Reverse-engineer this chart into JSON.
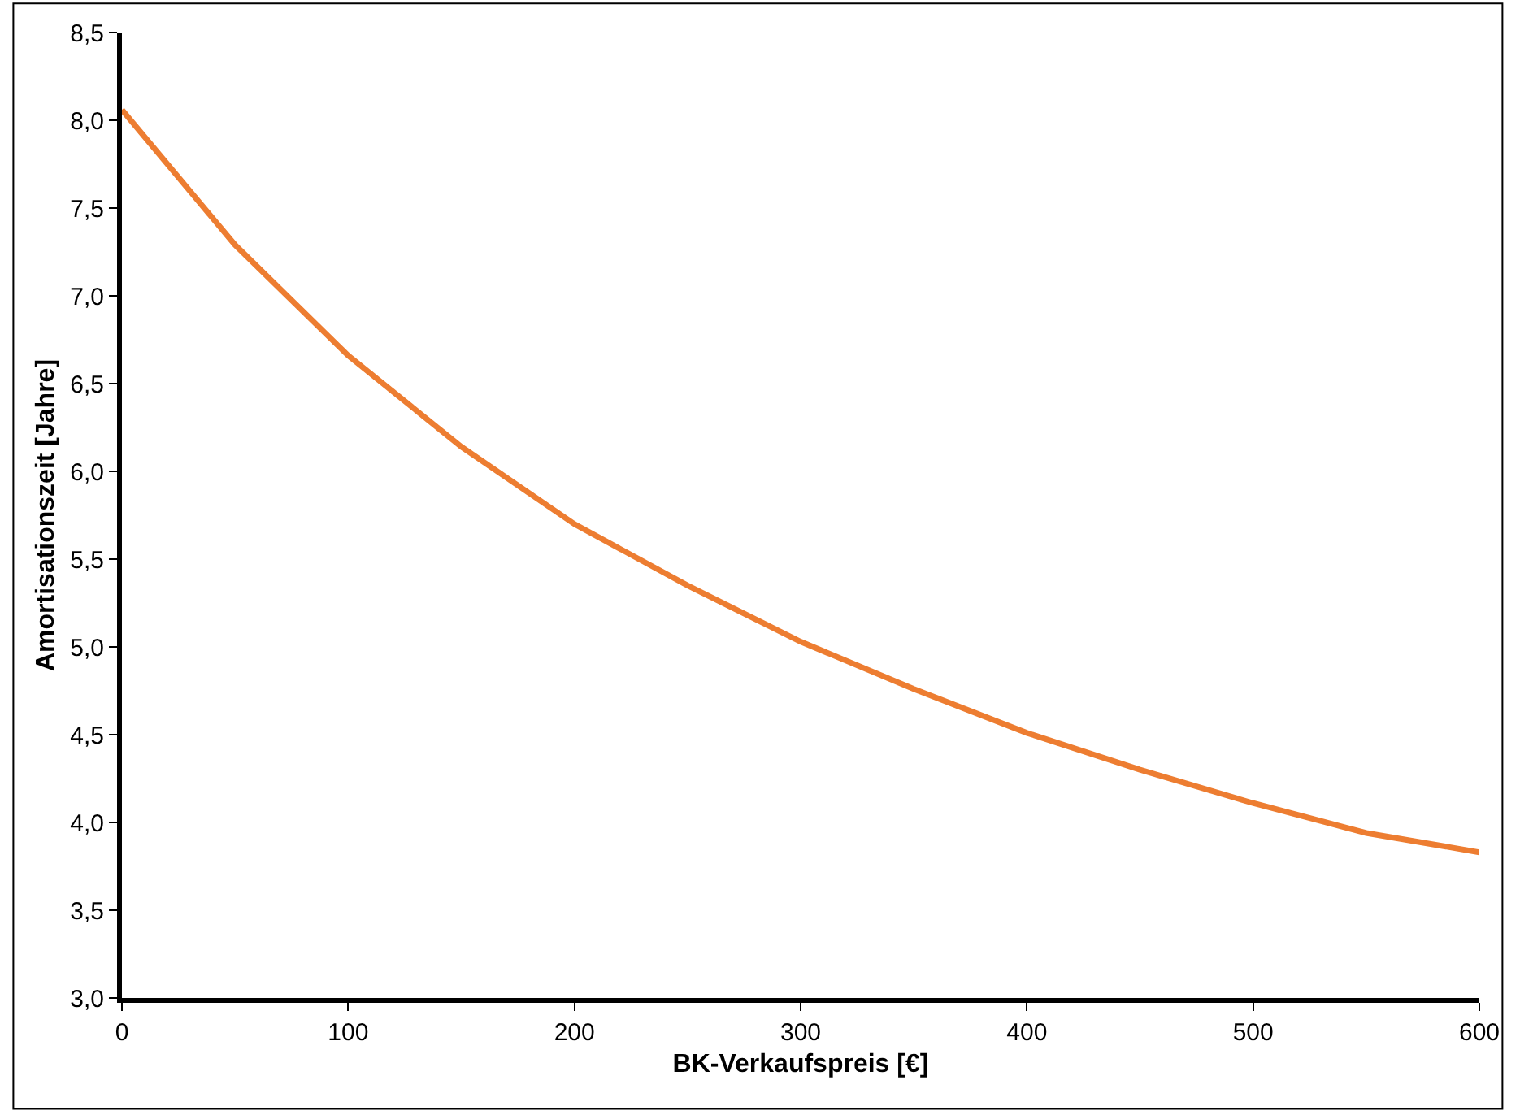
{
  "chart_data": {
    "type": "line",
    "xlabel": "BK-Verkaufspreis [€]",
    "ylabel": "Amortisationszeit [Jahre]",
    "x": [
      0,
      50,
      100,
      150,
      200,
      250,
      300,
      350,
      400,
      450,
      500,
      550,
      600
    ],
    "series": [
      {
        "color": "#ed7d31",
        "values": [
          8.06,
          7.29,
          6.66,
          6.14,
          5.7,
          5.35,
          5.03,
          4.76,
          4.51,
          4.3,
          4.11,
          3.94,
          3.83
        ]
      }
    ],
    "xlim": [
      0,
      600
    ],
    "xticks": [
      0,
      100,
      200,
      300,
      400,
      500,
      600
    ],
    "ylim": [
      3.0,
      8.5
    ],
    "yticks": [
      {
        "value": 3.0,
        "label": "3,0"
      },
      {
        "value": 3.5,
        "label": "3,5"
      },
      {
        "value": 4.0,
        "label": "4,0"
      },
      {
        "value": 4.5,
        "label": "4,5"
      },
      {
        "value": 5.0,
        "label": "5,0"
      },
      {
        "value": 5.5,
        "label": "5,5"
      },
      {
        "value": 6.0,
        "label": "6,0"
      },
      {
        "value": 6.5,
        "label": "6,5"
      },
      {
        "value": 7.0,
        "label": "7,0"
      },
      {
        "value": 7.5,
        "label": "7,5"
      },
      {
        "value": 8.0,
        "label": "8,0"
      },
      {
        "value": 8.5,
        "label": "8,5"
      }
    ],
    "marker": "none",
    "line_style": "solid"
  }
}
